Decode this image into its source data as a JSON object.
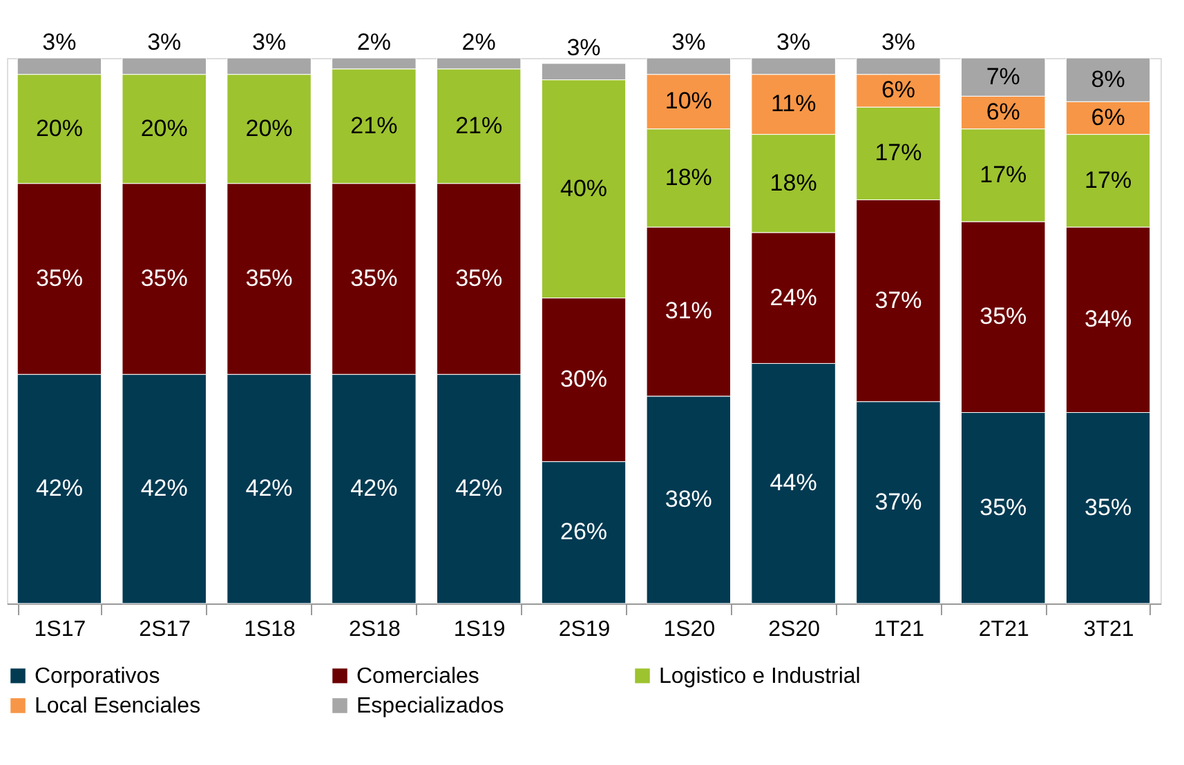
{
  "chart_data": {
    "type": "bar",
    "stacked": true,
    "legend": "bottom",
    "grid": false,
    "categories": [
      "1S17",
      "2S17",
      "1S18",
      "2S18",
      "1S19",
      "2S19",
      "1S20",
      "2S20",
      "1T21",
      "2T21",
      "3T21"
    ],
    "series": [
      {
        "name": "Corporativos",
        "color": "#023a52",
        "values": [
          42,
          42,
          42,
          42,
          42,
          26,
          38,
          44,
          37,
          35,
          35
        ],
        "value_labels": [
          "42%",
          "42%",
          "42%",
          "42%",
          "42%",
          "26%",
          "38%",
          "44%",
          "37%",
          "35%",
          "35%"
        ]
      },
      {
        "name": "Comerciales",
        "color": "#6b0000",
        "values": [
          35,
          35,
          35,
          35,
          35,
          30,
          31,
          24,
          37,
          35,
          34
        ],
        "value_labels": [
          "35%",
          "35%",
          "35%",
          "35%",
          "35%",
          "30%",
          "31%",
          "24%",
          "37%",
          "35%",
          "34%"
        ]
      },
      {
        "name": "Logistico e Industrial",
        "color": "#9dc32f",
        "values": [
          20,
          20,
          20,
          21,
          21,
          40,
          18,
          18,
          17,
          17,
          17
        ],
        "value_labels": [
          "20%",
          "20%",
          "20%",
          "21%",
          "21%",
          "40%",
          "18%",
          "18%",
          "17%",
          "17%",
          "17%"
        ]
      },
      {
        "name": "Local Esenciales",
        "color": "#f79646",
        "values": [
          null,
          null,
          null,
          null,
          null,
          null,
          10,
          11,
          6,
          6,
          6
        ],
        "value_labels": [
          null,
          null,
          null,
          null,
          null,
          null,
          "10%",
          "11%",
          "6%",
          "6%",
          "6%"
        ]
      },
      {
        "name": "Especializados",
        "color": "#a6a6a6",
        "values": [
          3,
          3,
          3,
          2,
          2,
          3,
          3,
          3,
          3,
          7,
          8
        ],
        "value_labels": [
          "3%",
          "3%",
          "3%",
          "2%",
          "2%",
          "3%",
          "3%",
          "3%",
          "3%",
          "7%",
          "8%"
        ]
      }
    ]
  }
}
